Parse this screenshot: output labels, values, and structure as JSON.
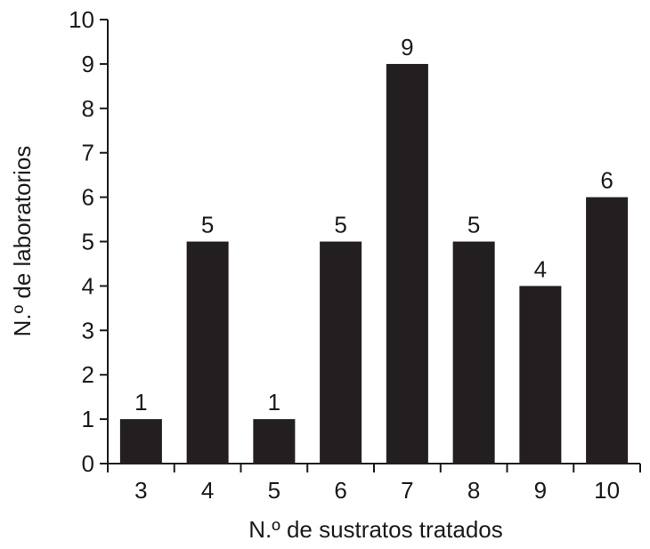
{
  "chart_data": {
    "type": "bar",
    "categories": [
      "3",
      "4",
      "5",
      "6",
      "7",
      "8",
      "9",
      "10"
    ],
    "values": [
      1,
      5,
      1,
      5,
      9,
      5,
      4,
      6
    ],
    "data_labels": [
      "1",
      "5",
      "1",
      "5",
      "9",
      "5",
      "4",
      "6"
    ],
    "xlabel": "N.º de sustratos tratados",
    "ylabel": "N.º de laboratorios",
    "ylim": [
      0,
      10
    ],
    "yticks": [
      "0",
      "1",
      "2",
      "3",
      "4",
      "5",
      "6",
      "7",
      "8",
      "9",
      "10"
    ],
    "grid": false,
    "bar_color": "#231f20"
  }
}
